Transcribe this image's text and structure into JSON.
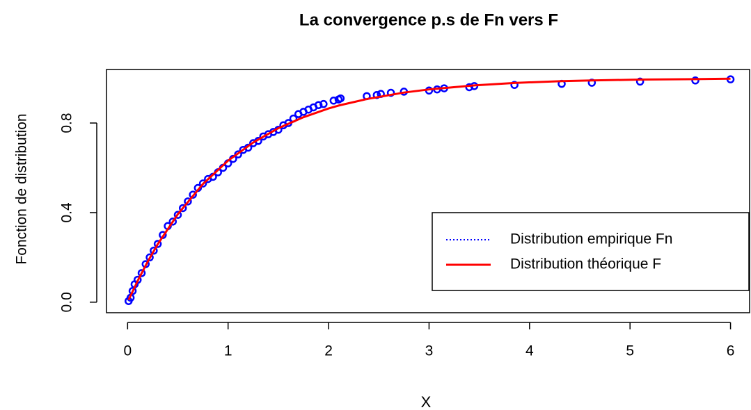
{
  "chart_data": {
    "type": "line",
    "title": "La convergence p.s de Fn vers F",
    "x_label": "X",
    "y_label": "Fonction de distribution",
    "xlim": [
      -0.21,
      6.19
    ],
    "ylim": [
      -0.047,
      1.039
    ],
    "xticks": [
      0,
      1,
      2,
      3,
      4,
      5,
      6
    ],
    "yticks": [
      {
        "value": 0,
        "label": "0.0"
      },
      0.4,
      0.8
    ],
    "legend": "right",
    "series": [
      {
        "name": "Distribution empirique Fn",
        "color": "#0000ff",
        "marker": "circle",
        "linestyle": "dotted",
        "x": [
          0.01,
          0.03,
          0.05,
          0.07,
          0.1,
          0.14,
          0.18,
          0.22,
          0.26,
          0.3,
          0.35,
          0.4,
          0.45,
          0.5,
          0.55,
          0.6,
          0.65,
          0.7,
          0.75,
          0.8,
          0.85,
          0.9,
          0.95,
          1.0,
          1.05,
          1.1,
          1.15,
          1.2,
          1.25,
          1.3,
          1.35,
          1.4,
          1.45,
          1.5,
          1.55,
          1.6,
          1.65,
          1.7,
          1.75,
          1.8,
          1.85,
          1.9,
          1.95,
          2.05,
          2.1,
          2.12,
          2.38,
          2.48,
          2.52,
          2.62,
          2.75,
          3.0,
          3.08,
          3.15,
          3.4,
          3.45,
          3.85,
          4.32,
          4.62,
          5.1,
          5.65,
          6.0
        ],
        "values": [
          0.005,
          0.02,
          0.05,
          0.08,
          0.1,
          0.13,
          0.17,
          0.2,
          0.23,
          0.26,
          0.3,
          0.34,
          0.36,
          0.39,
          0.42,
          0.45,
          0.48,
          0.51,
          0.53,
          0.55,
          0.56,
          0.58,
          0.6,
          0.62,
          0.64,
          0.66,
          0.68,
          0.69,
          0.71,
          0.72,
          0.74,
          0.75,
          0.76,
          0.77,
          0.79,
          0.8,
          0.82,
          0.84,
          0.85,
          0.86,
          0.87,
          0.88,
          0.885,
          0.9,
          0.905,
          0.91,
          0.92,
          0.925,
          0.93,
          0.935,
          0.94,
          0.945,
          0.95,
          0.955,
          0.96,
          0.965,
          0.97,
          0.975,
          0.98,
          0.985,
          0.99,
          0.995
        ]
      },
      {
        "name": "Distribution théorique F",
        "color": "#ff0000",
        "linestyle": "solid",
        "x": [
          0.01,
          0.1,
          0.2,
          0.3,
          0.5,
          0.75,
          1,
          1.25,
          1.5,
          1.75,
          2,
          2.1,
          2.38,
          2.75,
          3,
          3.45,
          3.85,
          4.32,
          4.62,
          5.1,
          5.65,
          6
        ],
        "values": [
          0.01,
          0.095,
          0.181,
          0.259,
          0.393,
          0.528,
          0.632,
          0.713,
          0.777,
          0.826,
          0.865,
          0.878,
          0.907,
          0.936,
          0.95,
          0.968,
          0.979,
          0.987,
          0.99,
          0.994,
          0.996,
          0.998
        ]
      }
    ]
  }
}
